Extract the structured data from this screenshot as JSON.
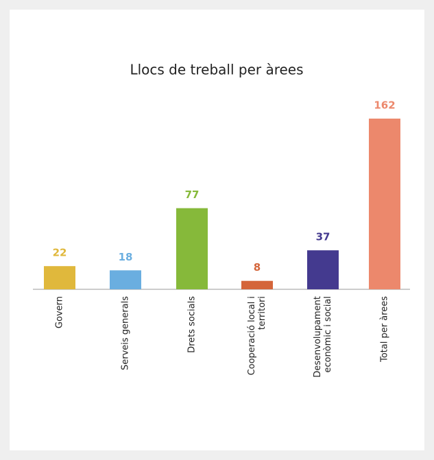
{
  "chart_data": {
    "type": "bar",
    "title": "Llocs de treball per àrees",
    "categories": [
      [
        "Govern"
      ],
      [
        "Serveis generals"
      ],
      [
        "Drets socials"
      ],
      [
        "Cooperació local i",
        "territori"
      ],
      [
        "Desenvolupament",
        "econòmic i social"
      ],
      [
        "Total per àrees"
      ]
    ],
    "values": [
      22,
      18,
      77,
      8,
      37,
      162
    ],
    "colors": [
      "#e0b83c",
      "#6aaee0",
      "#86b93a",
      "#d4653a",
      "#443a8f",
      "#ec886c"
    ]
  }
}
